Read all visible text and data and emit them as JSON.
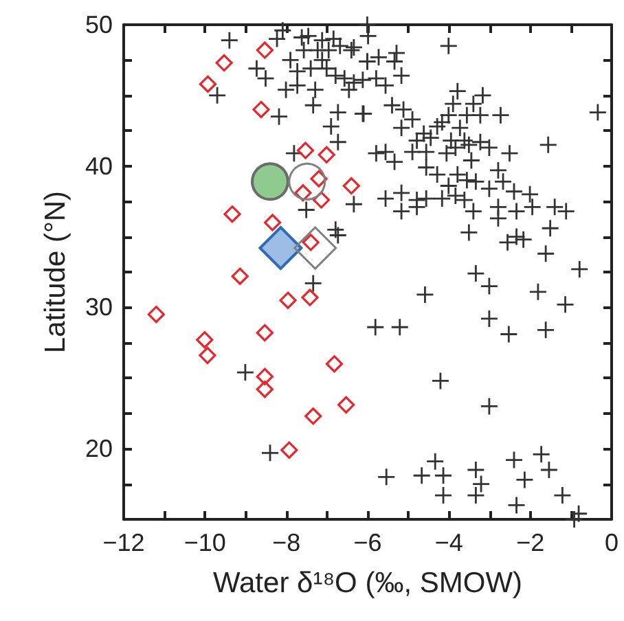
{
  "chart_data": {
    "type": "scatter",
    "xlabel": "Water δ¹⁸O (‰, SMOW)",
    "ylabel": "Latitude (°N)",
    "xlim": [
      -12,
      0
    ],
    "ylim": [
      15,
      50
    ],
    "xticks": [
      {
        "value": -12,
        "label": "−12"
      },
      {
        "value": -11,
        "label": null
      },
      {
        "value": -10,
        "label": "−10"
      },
      {
        "value": -9,
        "label": null
      },
      {
        "value": -8,
        "label": "−8"
      },
      {
        "value": -7,
        "label": null
      },
      {
        "value": -6,
        "label": "−6"
      },
      {
        "value": -5,
        "label": null
      },
      {
        "value": -4,
        "label": "−4"
      },
      {
        "value": -3,
        "label": null
      },
      {
        "value": -2,
        "label": "−2"
      },
      {
        "value": -1,
        "label": null
      },
      0
    ],
    "yticks": [
      {
        "value": 17.5,
        "label": null
      },
      20,
      {
        "value": 22.5,
        "label": null
      },
      {
        "value": 25,
        "label": null
      },
      {
        "value": 27.5,
        "label": null
      },
      30,
      {
        "value": 32.5,
        "label": null
      },
      {
        "value": 35,
        "label": null
      },
      {
        "value": 37.5,
        "label": null
      },
      40,
      {
        "value": 42.5,
        "label": null
      },
      {
        "value": 45,
        "label": null
      },
      {
        "value": 47.5,
        "label": null
      },
      50
    ],
    "series": [
      {
        "color": "#333333",
        "marker": "cross",
        "x": [
          -9.4,
          -8.09,
          -8.23,
          -7.62,
          -7.46,
          -7.12,
          -6.84,
          -6.68,
          -6.34,
          -7.57,
          -7.23,
          -6.96,
          -6.4,
          -7.9,
          -7.12,
          -6.01,
          -8.73,
          -8.51,
          -7.73,
          -7.4,
          -7.01,
          -6.79,
          -6.57,
          -6.34,
          -6.46,
          -8.01,
          -7.73,
          -7.29,
          -9.7,
          -7.34,
          -6.73,
          -6.12,
          -8.18,
          -6.9,
          -6.73,
          -7.81,
          -6.34,
          -7.51,
          -6.79,
          -6.73,
          -6.01,
          -5.99,
          -4.01,
          -5.73,
          -6.01,
          -5.29,
          -5.34,
          -5.17,
          -6.12,
          -5.79,
          -5.56,
          -3.79,
          -3.17,
          -3.9,
          -3.4,
          -6.1,
          -5.4,
          -5.12,
          -2.73,
          -0.34,
          -3.23,
          -4.01,
          -3.56,
          -4.9,
          -4.17,
          -5.17,
          -4.29,
          -3.73,
          -4.62,
          -4.79,
          -4.45,
          -3.95,
          -3.62,
          -3.23,
          -3.51,
          -3.01,
          -1.56,
          -5.79,
          -5.56,
          -5.34,
          -4.9,
          -4.56,
          -4.06,
          -3.84,
          -3.45,
          -2.51,
          -4.56,
          -4.29,
          -3.79,
          -3.56,
          -2.79,
          -2.67,
          -3.34,
          -3.01,
          -4.01,
          -2.4,
          -2.01,
          -5.56,
          -5.17,
          -4.79,
          -4.56,
          -4.17,
          -3.84,
          -3.62,
          -5.17,
          -4.79,
          -3.4,
          -2.79,
          -2.34,
          -1.95,
          -1.4,
          -1.12,
          -2.79,
          -3.51,
          -1.51,
          -2.56,
          -2.34,
          -2.17,
          -1.62,
          -0.79,
          -3.34,
          -3.01,
          -4.59,
          -1.81,
          -1.14,
          -5.81,
          -5.21,
          -3.01,
          -2.53,
          -1.62,
          -4.21,
          -3.01,
          -4.34,
          -5.54,
          -4.67,
          -4.14,
          -3.34,
          -2.4,
          -1.73,
          -1.54,
          -2.14,
          -3.21,
          -4.14,
          -3.34,
          -2.34,
          -1.21,
          -0.81,
          -0.92,
          -7.34,
          -9.01,
          -8.4
        ],
        "values": [
          48.9,
          49.6,
          49.0,
          49.1,
          49.2,
          48.9,
          49.0,
          48.5,
          48.4,
          48.2,
          48.2,
          48.2,
          48.2,
          47.5,
          47.5,
          47.4,
          46.9,
          46.2,
          46.7,
          46.9,
          46.9,
          46.4,
          46.2,
          45.9,
          45.4,
          45.4,
          45.7,
          45.4,
          45.0,
          44.3,
          43.8,
          43.7,
          43.5,
          42.8,
          41.7,
          40.9,
          37.3,
          36.9,
          35.5,
          35.1,
          50.0,
          49.2,
          48.5,
          47.7,
          47.4,
          48.0,
          47.4,
          46.4,
          46.1,
          46.2,
          45.7,
          45.3,
          45.0,
          44.4,
          44.4,
          43.7,
          44.3,
          44.0,
          43.6,
          43.8,
          43.6,
          43.6,
          43.6,
          43.3,
          43.1,
          42.7,
          42.8,
          42.7,
          42.3,
          41.8,
          42.0,
          41.8,
          41.8,
          41.7,
          41.5,
          41.3,
          41.5,
          40.9,
          41.0,
          40.3,
          41.0,
          41.0,
          40.9,
          41.3,
          40.4,
          40.9,
          39.9,
          39.4,
          39.4,
          39.0,
          39.7,
          38.9,
          38.9,
          38.4,
          38.6,
          38.2,
          38.0,
          37.7,
          38.1,
          37.6,
          37.7,
          37.7,
          37.9,
          37.6,
          36.8,
          37.1,
          36.8,
          37.1,
          36.8,
          37.1,
          37.1,
          36.8,
          36.3,
          35.3,
          35.6,
          34.6,
          35.0,
          34.8,
          33.8,
          32.7,
          32.4,
          31.5,
          30.9,
          31.1,
          30.2,
          28.6,
          28.6,
          29.2,
          28.1,
          28.4,
          24.8,
          23.0,
          19.1,
          18.0,
          18.1,
          18.1,
          18.5,
          19.2,
          19.6,
          18.5,
          17.8,
          17.5,
          16.7,
          16.7,
          16.0,
          16.7,
          15.4,
          15.0,
          31.7,
          25.4,
          19.7
        ]
      },
      {
        "color": "#e8262b",
        "marker": "diamond",
        "x": [
          -9.53,
          -8.53,
          -9.93,
          -8.62,
          -7.53,
          -7.01,
          -7.2,
          -6.4,
          -7.59,
          -7.14,
          -9.33,
          -8.34,
          -7.4,
          -9.14,
          -11.2,
          -7.96,
          -7.42,
          -8.53,
          -10.01,
          -9.94,
          -6.82,
          -8.53,
          -8.53,
          -6.53,
          -7.34,
          -7.93
        ],
        "values": [
          47.3,
          48.2,
          45.8,
          44.0,
          41.1,
          40.8,
          39.1,
          38.6,
          38.1,
          37.6,
          36.6,
          36.0,
          34.6,
          32.2,
          29.5,
          30.5,
          30.7,
          28.2,
          27.7,
          26.6,
          26.0,
          25.1,
          24.2,
          23.1,
          22.3,
          19.9
        ]
      },
      {
        "color": "#8fcb8f",
        "marker": "circle",
        "x": [
          -8.4
        ],
        "values": [
          38.9
        ]
      },
      {
        "color": "#808080",
        "marker": "circle",
        "x": [
          -7.49
        ],
        "values": [
          38.9
        ]
      },
      {
        "color": "#9dbde6",
        "marker": "diamond",
        "x": [
          -8.14
        ],
        "values": [
          34.2
        ]
      },
      {
        "color": "#808080",
        "marker": "diamond",
        "x": [
          -7.29
        ],
        "values": [
          34.2
        ]
      }
    ]
  }
}
